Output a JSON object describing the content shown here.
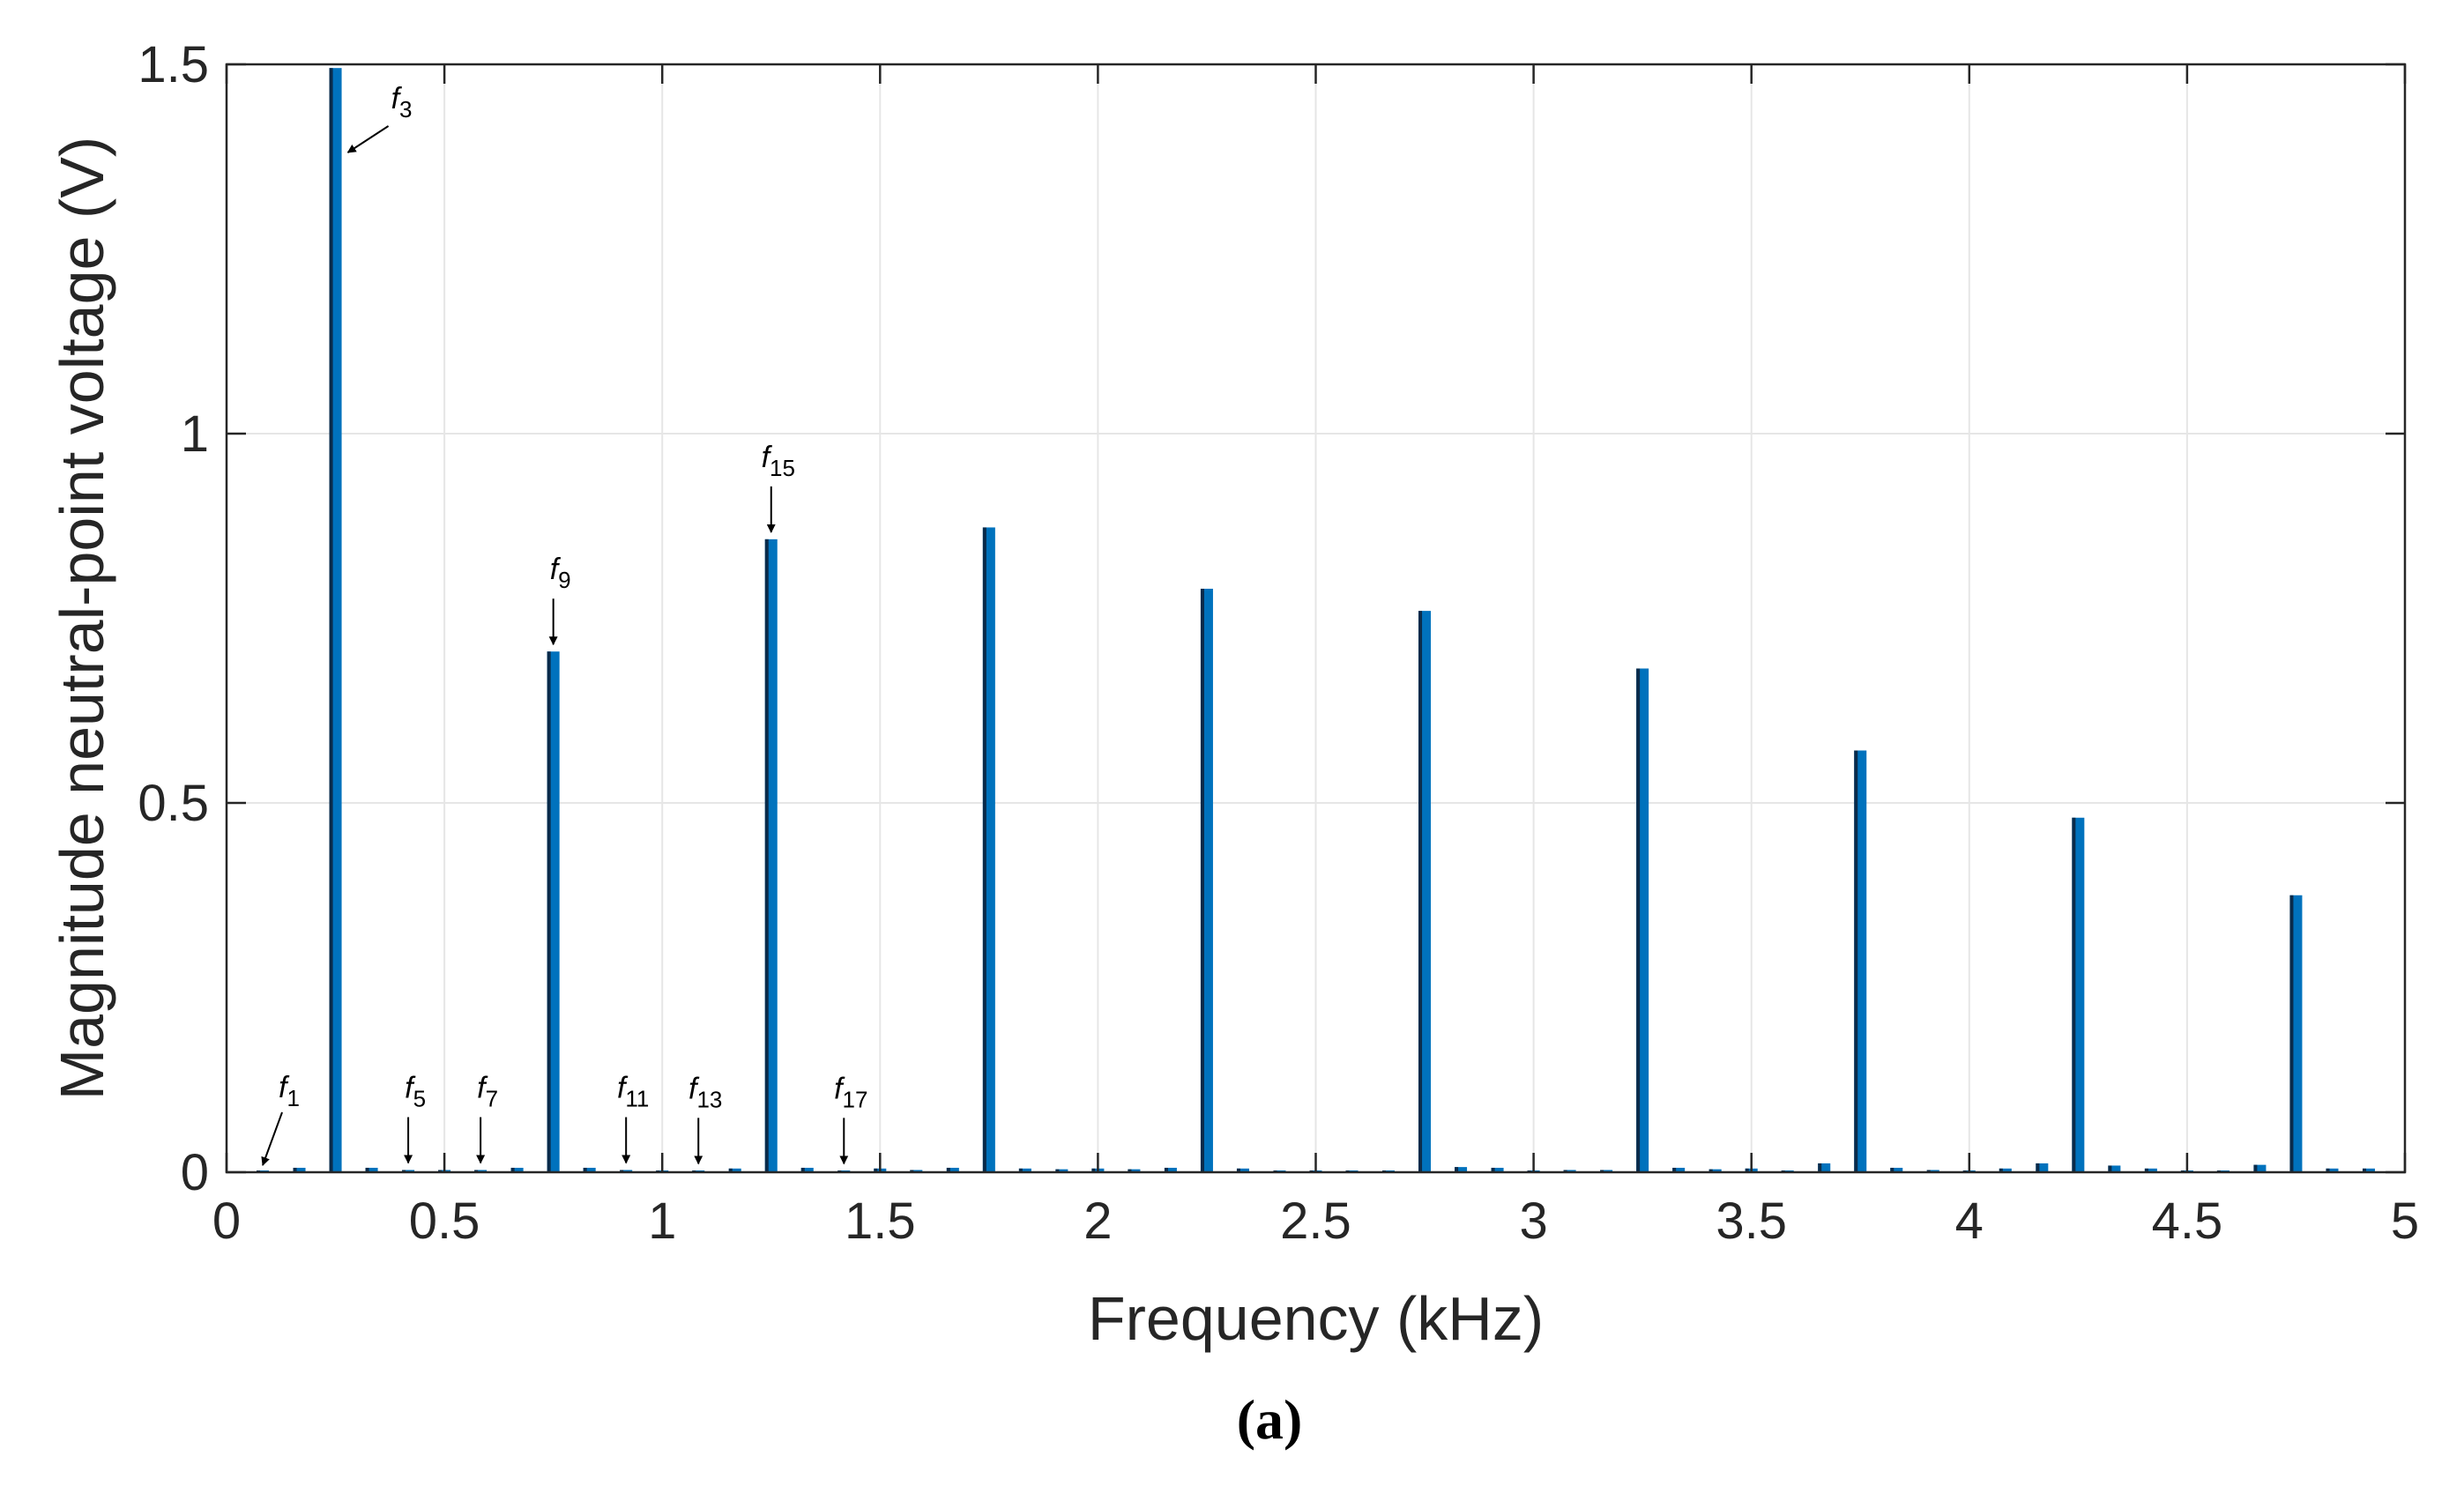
{
  "chart_data": {
    "type": "bar",
    "xlabel": "Frequency  (kHz)",
    "ylabel": "Magnitude neutral-point voltage (V)",
    "xlim": [
      0,
      5
    ],
    "ylim": [
      0,
      1.5
    ],
    "xticks": [
      0,
      0.5,
      1,
      1.5,
      2,
      2.5,
      3,
      3.5,
      4,
      4.5,
      5
    ],
    "xtick_labels": [
      "0",
      "0.5",
      "1",
      "1.5",
      "2",
      "2.5",
      "3",
      "3.5",
      "4",
      "4.5",
      "5"
    ],
    "yticks": [
      0,
      0.5,
      1,
      1.5
    ],
    "ytick_labels": [
      "0",
      "0.5",
      "1",
      "1.5"
    ],
    "grid": true,
    "bar_color": "#0072BD",
    "x": [
      0.083,
      0.167,
      0.25,
      0.333,
      0.417,
      0.5,
      0.583,
      0.667,
      0.75,
      0.833,
      0.917,
      1.0,
      1.083,
      1.167,
      1.25,
      1.333,
      1.417,
      1.5,
      1.583,
      1.667,
      1.75,
      1.833,
      1.917,
      2.0,
      2.083,
      2.167,
      2.25,
      2.333,
      2.417,
      2.5,
      2.583,
      2.667,
      2.75,
      2.833,
      2.917,
      3.0,
      3.083,
      3.167,
      3.25,
      3.333,
      3.417,
      3.5,
      3.583,
      3.667,
      3.75,
      3.833,
      3.917,
      4.0,
      4.083,
      4.167,
      4.25,
      4.333,
      4.417,
      4.5,
      4.583,
      4.667,
      4.75,
      4.833,
      4.917
    ],
    "values": [
      0.002,
      0.006,
      1.495,
      0.006,
      0.003,
      0.003,
      0.003,
      0.006,
      0.705,
      0.006,
      0.003,
      0.002,
      0.002,
      0.005,
      0.857,
      0.006,
      0.002,
      0.005,
      0.003,
      0.006,
      0.873,
      0.005,
      0.004,
      0.005,
      0.004,
      0.006,
      0.79,
      0.005,
      0.001,
      0.002,
      0.002,
      0.002,
      0.76,
      0.007,
      0.006,
      0.001,
      0.003,
      0.003,
      0.682,
      0.006,
      0.004,
      0.005,
      0.001,
      0.012,
      0.571,
      0.006,
      0.003,
      0.001,
      0.005,
      0.012,
      0.48,
      0.009,
      0.005,
      0.001,
      0.001,
      0.01,
      0.375,
      0.005,
      0.005
    ],
    "annotations": [
      {
        "label": "f",
        "sub": "1",
        "x": 0.083,
        "y": 0.002
      },
      {
        "label": "f",
        "sub": "3",
        "x": 0.25,
        "y": 1.495
      },
      {
        "label": "f",
        "sub": "5",
        "x": 0.417,
        "y": 0.003
      },
      {
        "label": "f",
        "sub": "7",
        "x": 0.583,
        "y": 0.003
      },
      {
        "label": "f",
        "sub": "9",
        "x": 0.75,
        "y": 0.705
      },
      {
        "label": "f",
        "sub": "11",
        "x": 0.917,
        "y": 0.003
      },
      {
        "label": "f",
        "sub": "13",
        "x": 1.083,
        "y": 0.002
      },
      {
        "label": "f",
        "sub": "15",
        "x": 1.25,
        "y": 0.857
      },
      {
        "label": "f",
        "sub": "17",
        "x": 1.417,
        "y": 0.002
      }
    ]
  },
  "caption": "(a)"
}
